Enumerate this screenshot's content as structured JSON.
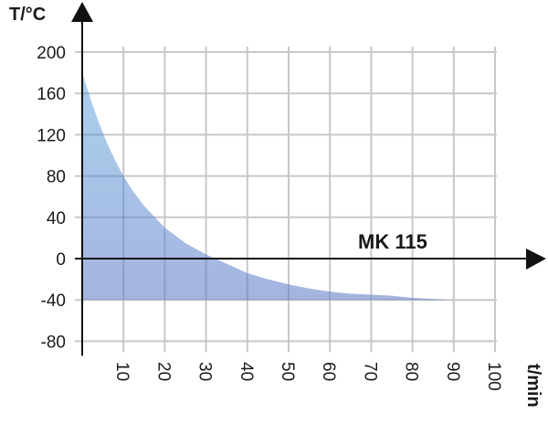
{
  "chart_data": {
    "type": "area",
    "title": "",
    "series_label": "MK 115",
    "xlabel": "t/min",
    "ylabel": "T/°C",
    "x_ticks": [
      10,
      20,
      30,
      40,
      50,
      60,
      70,
      80,
      90,
      100
    ],
    "y_ticks": [
      200,
      160,
      120,
      80,
      40,
      0,
      -40,
      -80
    ],
    "xlim": [
      0,
      100
    ],
    "ylim": [
      -85,
      215
    ],
    "grid": true,
    "baseline": -40,
    "series": [
      {
        "name": "MK 115",
        "x": [
          0,
          2,
          4,
          6,
          8,
          10,
          12,
          15,
          20,
          25,
          30,
          35,
          40,
          45,
          50,
          55,
          60,
          65,
          70,
          75,
          80,
          85,
          89
        ],
        "values": [
          180,
          155,
          132,
          112,
          95,
          80,
          67,
          51,
          30,
          15,
          4,
          -5,
          -14,
          -20,
          -25,
          -29,
          -32,
          -34,
          -35,
          -36,
          -38,
          -39,
          -40
        ]
      }
    ],
    "colors": {
      "fill_top": "#a9cdeb",
      "fill_bottom": "#a6b8e0",
      "grid": "#c8c8c8",
      "axis": "#111111"
    }
  }
}
